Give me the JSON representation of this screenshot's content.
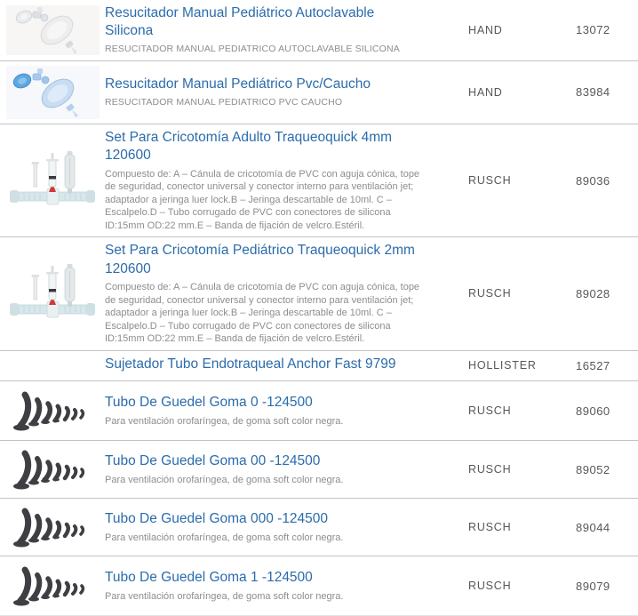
{
  "colors": {
    "title_link": "#2b6cab",
    "description_text": "#8b8d90",
    "meta_text": "#55575b",
    "divider": "#c2c2c2",
    "page_background": "#ffffff",
    "guedel_tube_black": "#3e3e43",
    "pvc_resuscitator_blue": "#5ea7e0",
    "crico_marker_red": "#cc3b35"
  },
  "table": {
    "rows": [
      {
        "image": "resuscitator-silicone",
        "title": "Resucitador Manual Pediátrico Autoclavable Silicona",
        "description": "RESUCITADOR MANUAL PEDIATRICO AUTOCLAVABLE SILICONA",
        "description_variant": "uppercase",
        "brand": "HAND",
        "code": "13072"
      },
      {
        "image": "resuscitator-pvc",
        "title": "Resucitador Manual Pediátrico Pvc/Caucho",
        "description": "RESUCITADOR MANUAL PEDIATRICO PVC CAUCHO",
        "description_variant": "uppercase",
        "brand": "HAND",
        "code": "83984"
      },
      {
        "image": "crico-set",
        "title": "Set Para Cricotomía Adulto Traqueoquick 4mm 120600",
        "description": "Compuesto de: A – Cánula de cricotomía de PVC con aguja cónica, tope de seguridad, conector universal y conector interno para ventilación jet; adaptador a jeringa luer lock.B – Jeringa descartable de 10ml. C – Escalpelo.D – Tubo corrugado de PVC con conectores de silicona ID:15mm OD:22 mm.E – Banda de fijación de velcro.Estéril.",
        "description_variant": "normal",
        "brand": "RUSCH",
        "code": "89036"
      },
      {
        "image": "crico-set",
        "title": "Set Para Cricotomía Pediátrico Traqueoquick 2mm 120600",
        "description": "Compuesto de: A – Cánula de cricotomía de PVC con aguja cónica, tope de seguridad, conector universal y conector interno para ventilación jet; adaptador a jeringa luer lock.B – Jeringa descartable de 10ml. C – Escalpelo.D – Tubo corrugado de PVC con conectores de silicona ID:15mm OD:22 mm.E – Banda de fijación de velcro.Estéril.",
        "description_variant": "normal",
        "brand": "RUSCH",
        "code": "89028"
      },
      {
        "image": null,
        "title": "Sujetador Tubo Endotraqueal Anchor Fast 9799",
        "description": "",
        "description_variant": "normal",
        "brand": "HOLLISTER",
        "code": "16527"
      },
      {
        "image": "guedel-tubes",
        "title": "Tubo De Guedel Goma 0 -124500",
        "description": "Para ventilación orofaríngea, de goma soft color negra.",
        "description_variant": "normal",
        "brand": "RUSCH",
        "code": "89060"
      },
      {
        "image": "guedel-tubes",
        "title": "Tubo De Guedel Goma 00 -124500",
        "description": "Para ventilación orofaríngea, de goma soft color negra.",
        "description_variant": "normal",
        "brand": "RUSCH",
        "code": "89052"
      },
      {
        "image": "guedel-tubes",
        "title": "Tubo De Guedel Goma 000 -124500",
        "description": "Para ventilación orofaríngea, de goma soft color negra.",
        "description_variant": "normal",
        "brand": "RUSCH",
        "code": "89044"
      },
      {
        "image": "guedel-tubes",
        "title": "Tubo De Guedel Goma 1 -124500",
        "description": "Para ventilación orofaríngea, de goma soft color negra.",
        "description_variant": "normal",
        "brand": "RUSCH",
        "code": "89079"
      }
    ]
  }
}
